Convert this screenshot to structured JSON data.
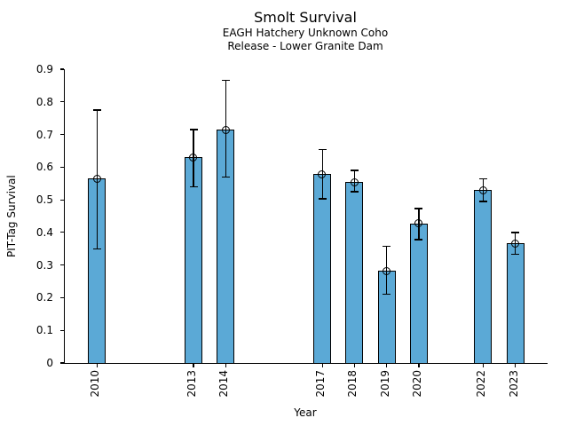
{
  "chart_data": {
    "type": "bar",
    "title": "Smolt Survival",
    "subtitle": [
      "EAGH Hatchery Unknown Coho",
      "Release - Lower Granite Dam"
    ],
    "xlabel": "Year",
    "ylabel": "PIT-Tag Survival",
    "xlim": [
      2009,
      2024
    ],
    "ylim": [
      0,
      0.9
    ],
    "yticks": [
      0,
      0.1,
      0.2,
      0.3,
      0.4,
      0.5,
      0.6,
      0.7,
      0.8,
      0.9
    ],
    "ytick_labels": [
      "0",
      "0.1",
      "0.2",
      "0.3",
      "0.4",
      "0.5",
      "0.6",
      "0.7",
      "0.8",
      "0.9"
    ],
    "xtick_labels": [
      "2010",
      "2013",
      "2014",
      "2017",
      "2018",
      "2019",
      "2020",
      "2022",
      "2023"
    ],
    "bar_color": "#5BA9D6",
    "edge_color": "#000000",
    "error_bars": true,
    "point_marker": "open-circle",
    "legend": "none",
    "grid": false,
    "points": [
      {
        "year": 2010,
        "value": 0.565,
        "ci_low": 0.35,
        "ci_high": 0.775
      },
      {
        "year": 2013,
        "value": 0.63,
        "ci_low": 0.54,
        "ci_high": 0.715
      },
      {
        "year": 2014,
        "value": 0.715,
        "ci_low": 0.57,
        "ci_high": 0.865
      },
      {
        "year": 2017,
        "value": 0.578,
        "ci_low": 0.503,
        "ci_high": 0.655
      },
      {
        "year": 2018,
        "value": 0.555,
        "ci_low": 0.525,
        "ci_high": 0.59
      },
      {
        "year": 2019,
        "value": 0.283,
        "ci_low": 0.21,
        "ci_high": 0.358
      },
      {
        "year": 2020,
        "value": 0.428,
        "ci_low": 0.378,
        "ci_high": 0.473
      },
      {
        "year": 2022,
        "value": 0.53,
        "ci_low": 0.495,
        "ci_high": 0.565
      },
      {
        "year": 2023,
        "value": 0.366,
        "ci_low": 0.334,
        "ci_high": 0.4
      }
    ]
  }
}
